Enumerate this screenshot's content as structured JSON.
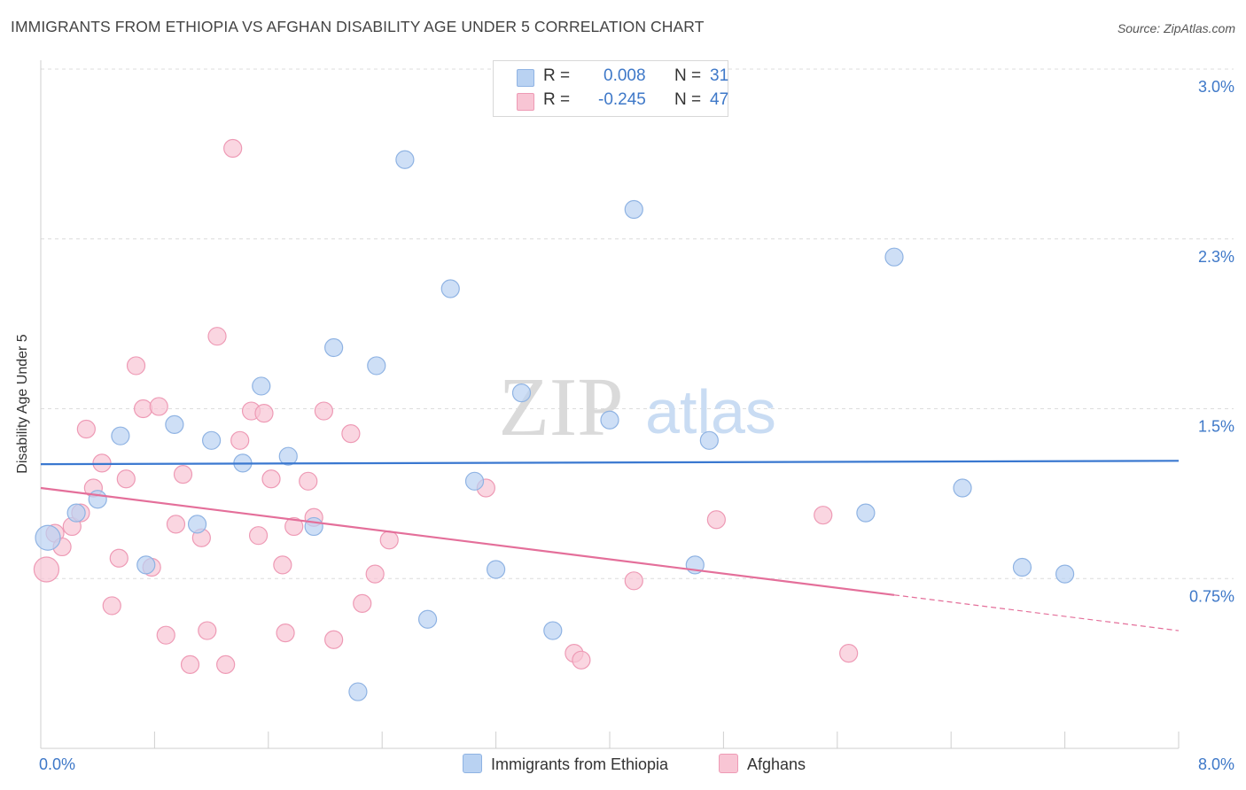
{
  "header": {
    "title": "IMMIGRANTS FROM ETHIOPIA VS AFGHAN DISABILITY AGE UNDER 5 CORRELATION CHART",
    "source": "Source: ZipAtlas.com"
  },
  "legend_top": {
    "rows": [
      {
        "r_label": "R =",
        "r_value": "0.008",
        "n_label": "N =",
        "n_value": "31"
      },
      {
        "r_label": "R =",
        "r_value": "-0.245",
        "n_label": "N =",
        "n_value": "47"
      }
    ]
  },
  "legend_bottom": {
    "items": [
      "Immigrants from Ethiopia",
      "Afghans"
    ]
  },
  "watermark": {
    "zip": "ZIP",
    "atlas": "atlas"
  },
  "colors": {
    "blue_fill": "#b9d2f2",
    "blue_edge": "#8fb3e3",
    "blue_line": "#3a78d0",
    "pink_fill": "#f8c5d4",
    "pink_edge": "#ee9ab5",
    "pink_line": "#e46f9a",
    "tick_text": "#3e78c8",
    "grid": "#dcdcdc"
  },
  "chart_data": {
    "type": "scatter",
    "title": "IMMIGRANTS FROM ETHIOPIA VS AFGHAN DISABILITY AGE UNDER 5 CORRELATION CHART",
    "xlabel": "",
    "ylabel": "Disability Age Under 5",
    "xlim": [
      0.0,
      8.0
    ],
    "ylim": [
      0.0,
      3.0
    ],
    "x_tick_labels": [
      "0.0%",
      "8.0%"
    ],
    "y_ticks": [
      0.75,
      1.5,
      2.25,
      3.0
    ],
    "y_tick_labels": [
      "0.75%",
      "1.5%",
      "2.3%",
      "3.0%"
    ],
    "grid": true,
    "series": [
      {
        "name": "Immigrants from Ethiopia",
        "r": 0.008,
        "n": 31,
        "trend": {
          "x": [
            0.0,
            8.0
          ],
          "y": [
            1.255,
            1.27
          ],
          "dashed_from": null
        },
        "points": [
          [
            0.05,
            0.93,
            28
          ],
          [
            0.25,
            1.04,
            20
          ],
          [
            0.4,
            1.1,
            20
          ],
          [
            0.56,
            1.38,
            20
          ],
          [
            0.74,
            0.81,
            20
          ],
          [
            0.94,
            1.43,
            20
          ],
          [
            1.1,
            0.99,
            20
          ],
          [
            1.2,
            1.36,
            20
          ],
          [
            1.42,
            1.26,
            20
          ],
          [
            1.55,
            1.6,
            20
          ],
          [
            1.74,
            1.29,
            20
          ],
          [
            1.92,
            0.98,
            20
          ],
          [
            2.06,
            1.77,
            20
          ],
          [
            2.23,
            0.25,
            20
          ],
          [
            2.36,
            1.69,
            20
          ],
          [
            2.56,
            2.6,
            20
          ],
          [
            2.72,
            0.57,
            20
          ],
          [
            2.88,
            2.03,
            20
          ],
          [
            3.05,
            1.18,
            20
          ],
          [
            3.2,
            0.79,
            20
          ],
          [
            3.38,
            1.57,
            20
          ],
          [
            3.6,
            0.52,
            20
          ],
          [
            4.0,
            1.45,
            20
          ],
          [
            4.17,
            2.38,
            20
          ],
          [
            4.6,
            0.81,
            20
          ],
          [
            4.7,
            1.36,
            20
          ],
          [
            5.8,
            1.04,
            20
          ],
          [
            6.0,
            2.17,
            20
          ],
          [
            6.48,
            1.15,
            20
          ],
          [
            6.9,
            0.8,
            20
          ],
          [
            7.2,
            0.77,
            20
          ]
        ]
      },
      {
        "name": "Afghans",
        "r": -0.245,
        "n": 47,
        "trend": {
          "x": [
            0.0,
            8.0
          ],
          "y": [
            1.15,
            0.52
          ],
          "dashed_from": 6.0
        },
        "points": [
          [
            0.04,
            0.79,
            28
          ],
          [
            0.1,
            0.95,
            20
          ],
          [
            0.15,
            0.89,
            20
          ],
          [
            0.22,
            0.98,
            20
          ],
          [
            0.28,
            1.04,
            20
          ],
          [
            0.32,
            1.41,
            20
          ],
          [
            0.37,
            1.15,
            20
          ],
          [
            0.43,
            1.26,
            20
          ],
          [
            0.5,
            0.63,
            20
          ],
          [
            0.55,
            0.84,
            20
          ],
          [
            0.6,
            1.19,
            20
          ],
          [
            0.67,
            1.69,
            20
          ],
          [
            0.72,
            1.5,
            20
          ],
          [
            0.78,
            0.8,
            20
          ],
          [
            0.83,
            1.51,
            20
          ],
          [
            0.88,
            0.5,
            20
          ],
          [
            0.95,
            0.99,
            20
          ],
          [
            1.0,
            1.21,
            20
          ],
          [
            1.05,
            0.37,
            20
          ],
          [
            1.13,
            0.93,
            20
          ],
          [
            1.17,
            0.52,
            20
          ],
          [
            1.24,
            1.82,
            20
          ],
          [
            1.3,
            0.37,
            20
          ],
          [
            1.35,
            2.65,
            20
          ],
          [
            1.4,
            1.36,
            20
          ],
          [
            1.48,
            1.49,
            20
          ],
          [
            1.53,
            0.94,
            20
          ],
          [
            1.57,
            1.48,
            20
          ],
          [
            1.62,
            1.19,
            20
          ],
          [
            1.7,
            0.81,
            20
          ],
          [
            1.72,
            0.51,
            20
          ],
          [
            1.78,
            0.98,
            20
          ],
          [
            1.88,
            1.18,
            20
          ],
          [
            1.92,
            1.02,
            20
          ],
          [
            1.99,
            1.49,
            20
          ],
          [
            2.06,
            0.48,
            20
          ],
          [
            2.18,
            1.39,
            20
          ],
          [
            2.26,
            0.64,
            20
          ],
          [
            2.35,
            0.77,
            20
          ],
          [
            2.45,
            0.92,
            20
          ],
          [
            3.13,
            1.15,
            20
          ],
          [
            3.75,
            0.42,
            20
          ],
          [
            3.8,
            0.39,
            20
          ],
          [
            4.17,
            0.74,
            20
          ],
          [
            4.75,
            1.01,
            20
          ],
          [
            5.5,
            1.03,
            20
          ],
          [
            5.68,
            0.42,
            20
          ]
        ]
      }
    ]
  }
}
